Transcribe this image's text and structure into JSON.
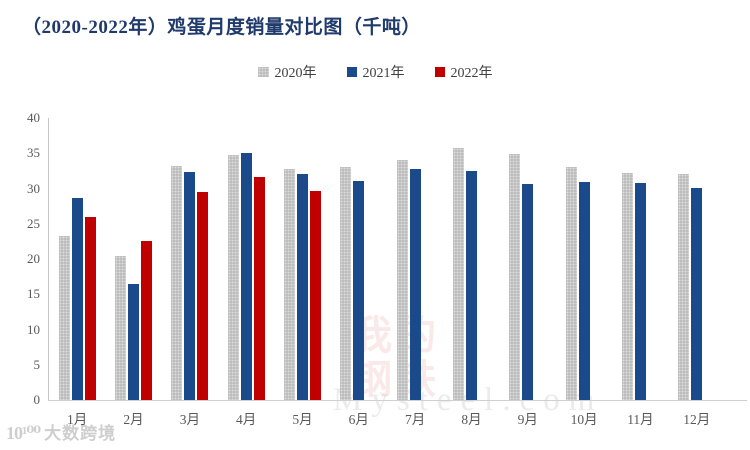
{
  "chart_data": {
    "type": "bar",
    "title": "（2020-2022年）鸡蛋月度销量对比图（千吨）",
    "categories": [
      "1月",
      "2月",
      "3月",
      "4月",
      "5月",
      "6月",
      "7月",
      "8月",
      "9月",
      "10月",
      "11月",
      "12月"
    ],
    "series": [
      {
        "name": "2020年",
        "color": "#b6b6b6",
        "values": [
          23.2,
          20.4,
          33.2,
          34.7,
          32.8,
          33.0,
          34.0,
          35.7,
          34.9,
          33.1,
          32.2,
          32.1
        ]
      },
      {
        "name": "2021年",
        "color": "#1b4a8a",
        "values": [
          28.6,
          16.5,
          32.4,
          35.1,
          32.1,
          31.0,
          32.8,
          32.5,
          30.6,
          30.9,
          30.8,
          30.1
        ]
      },
      {
        "name": "2022年",
        "color": "#c00000",
        "values": [
          25.9,
          22.5,
          29.5,
          31.7,
          29.6,
          null,
          null,
          null,
          null,
          null,
          null,
          null
        ]
      }
    ],
    "xlabel": "",
    "ylabel": "",
    "ylim": [
      0,
      40
    ],
    "yticks": [
      0,
      5,
      10,
      15,
      20,
      25,
      30,
      35,
      40
    ],
    "grid": false,
    "legend_position": "top-center",
    "title_color": "#1f3a6b",
    "axis_text_color": "#595959"
  },
  "watermarks": {
    "center_line1": "我的",
    "center_line2": "钢铁",
    "center_en": "Mysteel.com",
    "bottom_left_logo": "10¹⁰⁰",
    "bottom_left_text": "大数跨境"
  }
}
